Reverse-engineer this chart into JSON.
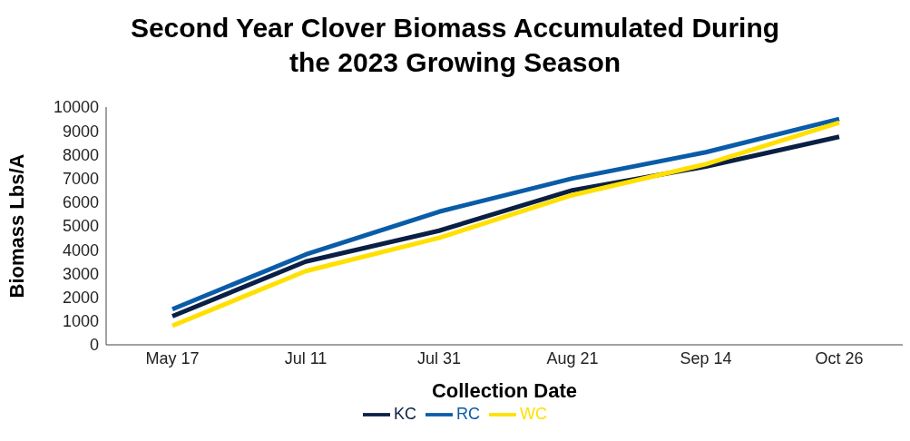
{
  "chart_data": {
    "type": "line",
    "title": "Second Year Clover Biomass Accumulated During the 2023 Growing Season",
    "xlabel": "Collection Date",
    "ylabel": "Biomass Lbs/A",
    "categories": [
      "May 17",
      "Jul 11",
      "Jul 31",
      "Aug 21",
      "Sep 14",
      "Oct 26"
    ],
    "series": [
      {
        "name": "KC",
        "color": "#0a1f44",
        "values": [
          1200,
          3500,
          4800,
          6500,
          7500,
          8750
        ]
      },
      {
        "name": "RC",
        "color": "#0a5ca8",
        "values": [
          1500,
          3800,
          5600,
          7000,
          8100,
          9500
        ]
      },
      {
        "name": "WC",
        "color": "#ffe000",
        "values": [
          800,
          3100,
          4500,
          6300,
          7600,
          9350
        ]
      }
    ],
    "ylim": [
      0,
      10000
    ],
    "yticks": [
      0,
      1000,
      2000,
      3000,
      4000,
      5000,
      6000,
      7000,
      8000,
      9000,
      10000
    ],
    "grid": false,
    "legend": "bottom",
    "marker": "none",
    "line_style": "solid"
  }
}
